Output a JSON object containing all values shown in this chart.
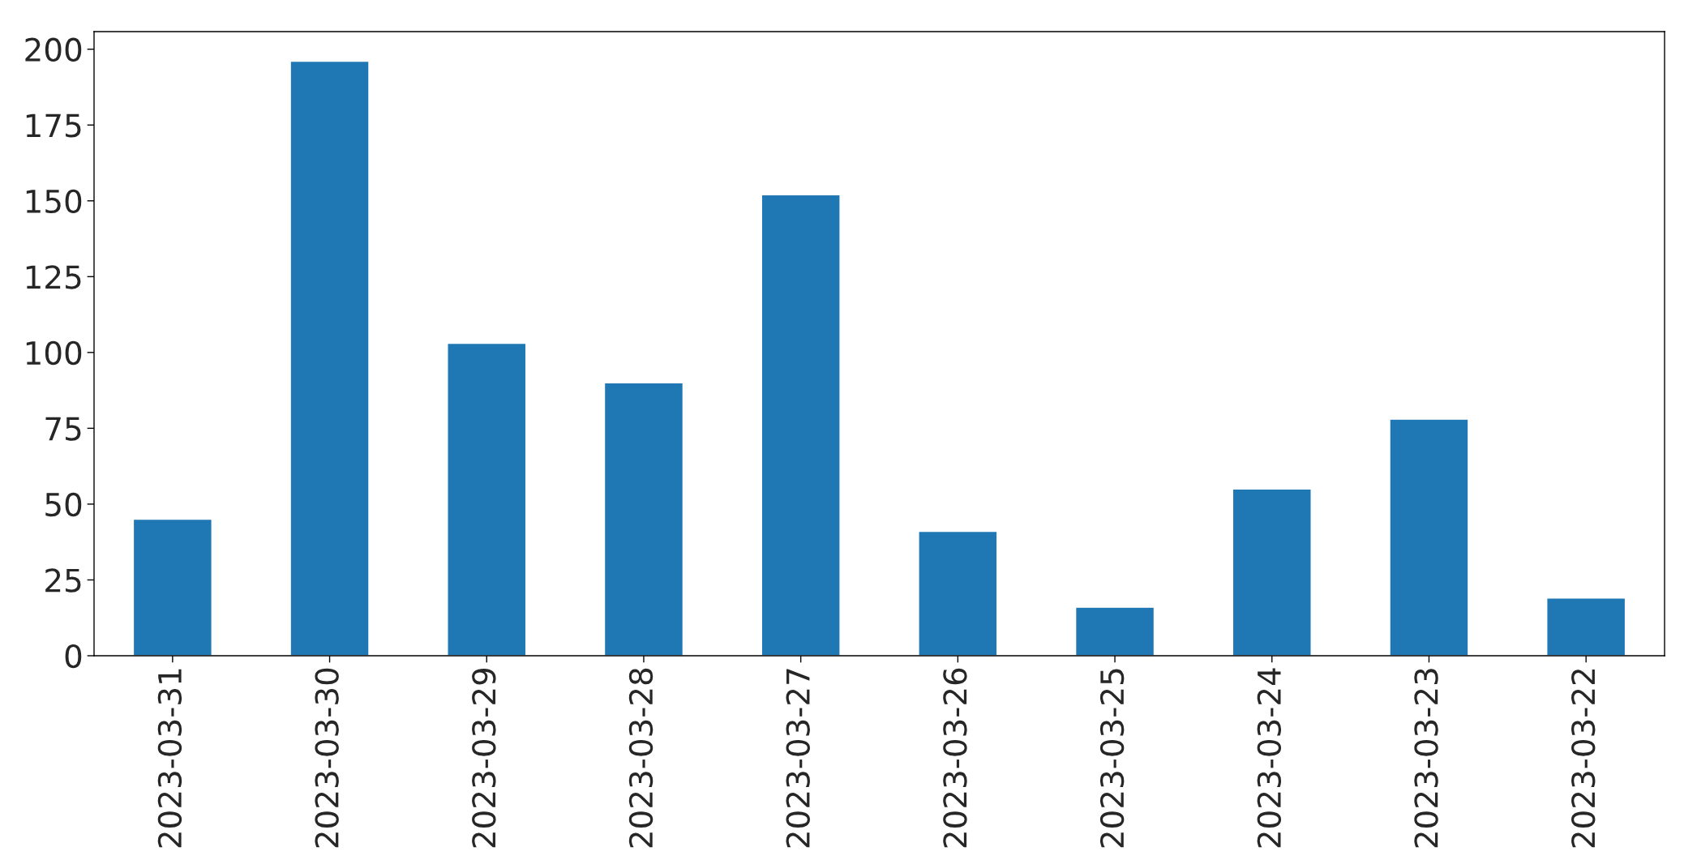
{
  "chart_data": {
    "type": "bar",
    "categories": [
      "2023-03-31",
      "2023-03-30",
      "2023-03-29",
      "2023-03-28",
      "2023-03-27",
      "2023-03-26",
      "2023-03-25",
      "2023-03-24",
      "2023-03-23",
      "2023-03-22"
    ],
    "values": [
      45,
      196,
      103,
      90,
      152,
      41,
      16,
      55,
      78,
      19
    ],
    "color": "#1f77b4",
    "ylim": [
      0,
      205.8
    ],
    "yticks": [
      0,
      25,
      50,
      75,
      100,
      125,
      150,
      175,
      200
    ],
    "grid": false,
    "legend": false
  }
}
